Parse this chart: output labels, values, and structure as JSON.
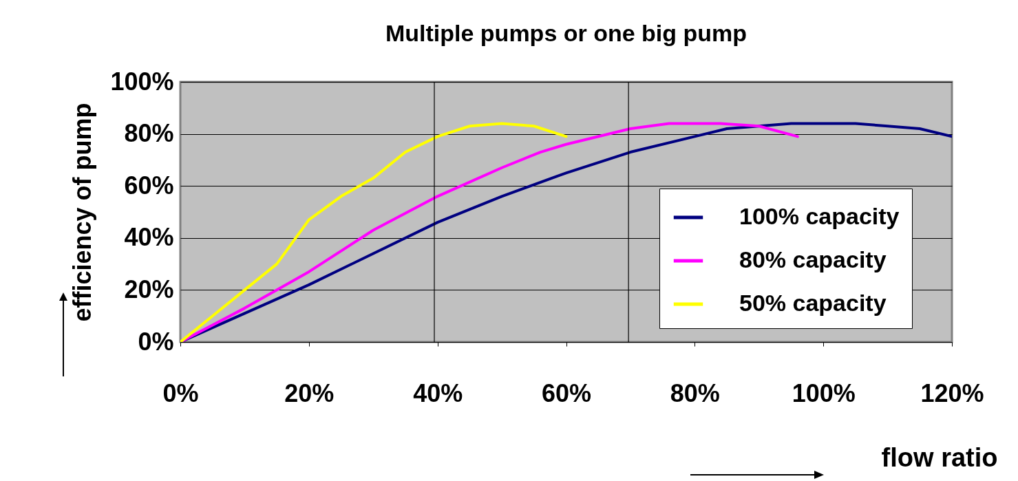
{
  "chart_data": {
    "type": "line",
    "title": "Multiple pumps or one big pump",
    "xlabel": "flow ratio",
    "ylabel": "efficiency of pump",
    "xlim": [
      0,
      120
    ],
    "xticks": [
      {
        "value": 0,
        "label": "0%"
      },
      {
        "value": 20,
        "label": "20%"
      },
      {
        "value": 40,
        "label": "40%"
      },
      {
        "value": 60,
        "label": "60%"
      },
      {
        "value": 80,
        "label": "80%"
      },
      {
        "value": 100,
        "label": "100%"
      },
      {
        "value": 120,
        "label": "120%"
      }
    ],
    "ylim": [
      0,
      100
    ],
    "yticks": [
      {
        "value": 0,
        "label": "0%"
      },
      {
        "value": 20,
        "label": "20%"
      },
      {
        "value": 40,
        "label": "40%"
      },
      {
        "value": 60,
        "label": "60%"
      },
      {
        "value": 80,
        "label": "80%"
      },
      {
        "value": 100,
        "label": "100%"
      }
    ],
    "grid": "y",
    "legend": "right",
    "line_style": "solid",
    "marker": "none",
    "series": [
      {
        "name": "100% capacity",
        "color": "#000080",
        "x": [
          0,
          10,
          20,
          30,
          40,
          50,
          60,
          70,
          80,
          85,
          90,
          95,
          100,
          105,
          110,
          115,
          120
        ],
        "values": [
          0,
          11,
          22,
          34,
          46,
          56,
          65,
          73,
          79,
          82,
          83,
          84,
          84,
          84,
          83,
          82,
          79
        ]
      },
      {
        "name": "80% capacity",
        "color": "#ff00ff",
        "x": [
          0,
          10,
          20,
          30,
          40,
          50,
          56,
          60,
          70,
          76,
          84,
          90,
          96
        ],
        "values": [
          0,
          13,
          27,
          43,
          56,
          67,
          73,
          76,
          82,
          84,
          84,
          83,
          79
        ]
      },
      {
        "name": "50% capacity",
        "color": "#ffff00",
        "x": [
          0,
          5,
          10,
          15,
          20,
          25,
          30,
          35,
          40,
          45,
          50,
          55,
          60
        ],
        "values": [
          0,
          10,
          20,
          30,
          47,
          56,
          63,
          73,
          79,
          83,
          84,
          83,
          79
        ]
      }
    ],
    "ref_lines": [
      {
        "axis": "x",
        "value": 39.5,
        "color": "#000000"
      },
      {
        "axis": "x",
        "value": 69.7,
        "color": "#000000"
      }
    ]
  }
}
